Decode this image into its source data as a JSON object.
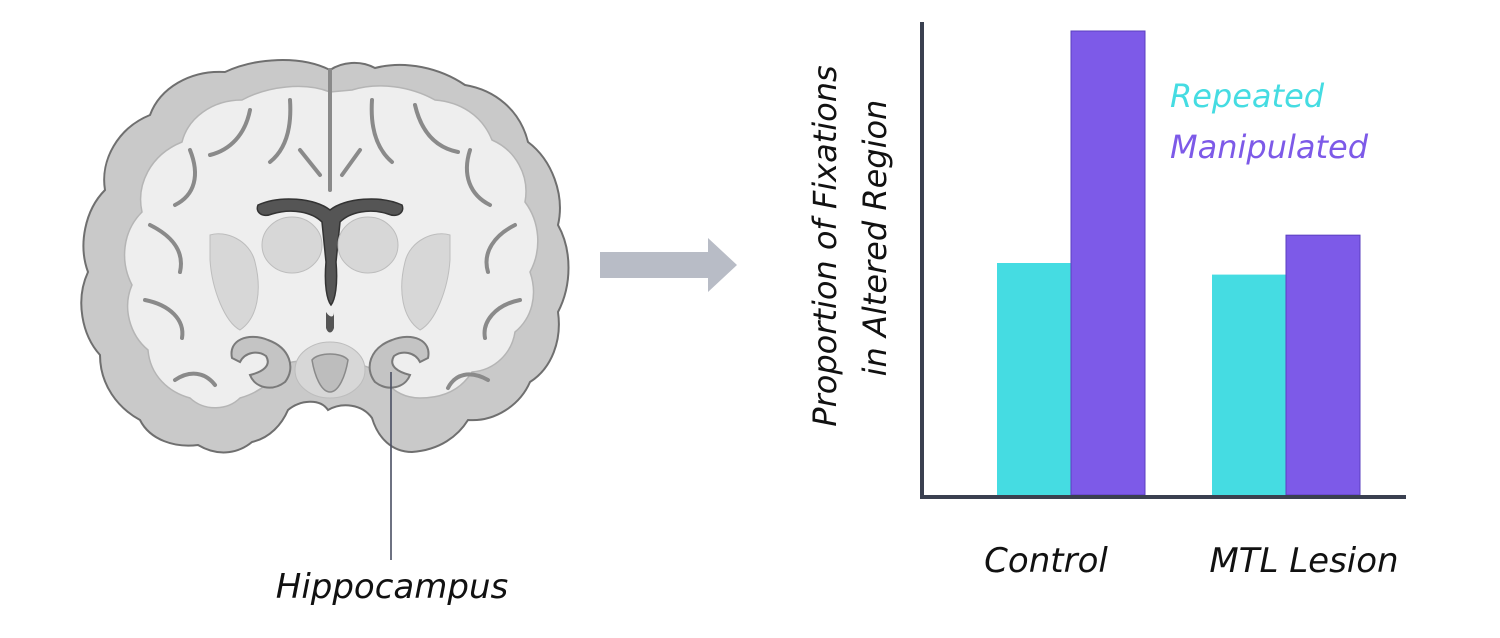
{
  "brain": {
    "label": "Hippocampus"
  },
  "arrow": {
    "icon": "right-arrow-icon",
    "color": "#b8bcc6"
  },
  "chart_data": {
    "type": "bar",
    "categories": [
      "Control",
      "MTL Lesion"
    ],
    "series": [
      {
        "name": "Repeated",
        "values": [
          0.5,
          0.475
        ],
        "color": "#45dce2"
      },
      {
        "name": "Manipulated",
        "values": [
          1.0,
          0.56
        ],
        "color": "#7d5ae8"
      }
    ],
    "ylabel_lines": [
      "Proportion of Fixations",
      "in Altered Region"
    ],
    "ylim": [
      0,
      1.06
    ],
    "legend_position": "top-right",
    "grid": false,
    "axis_color": "#3a4050"
  }
}
